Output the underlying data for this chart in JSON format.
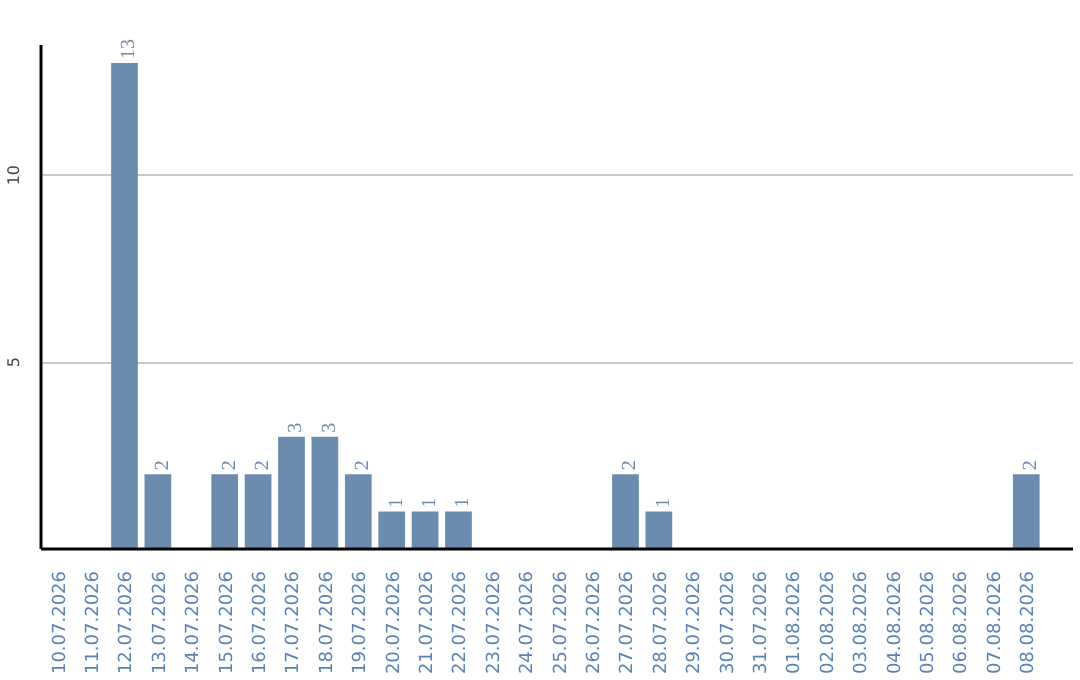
{
  "chart_data": {
    "type": "bar",
    "categories": [
      "10.07.2026",
      "11.07.2026",
      "12.07.2026",
      "13.07.2026",
      "14.07.2026",
      "15.07.2026",
      "16.07.2026",
      "17.07.2026",
      "18.07.2026",
      "19.07.2026",
      "20.07.2026",
      "21.07.2026",
      "22.07.2026",
      "23.07.2026",
      "24.07.2026",
      "25.07.2026",
      "26.07.2026",
      "27.07.2026",
      "28.07.2026",
      "29.07.2026",
      "30.07.2026",
      "31.07.2026",
      "01.08.2026",
      "02.08.2026",
      "03.08.2026",
      "04.08.2026",
      "05.08.2026",
      "06.08.2026",
      "07.08.2026",
      "08.08.2026"
    ],
    "values": [
      null,
      null,
      13,
      2,
      null,
      2,
      2,
      3,
      3,
      2,
      1,
      1,
      1,
      null,
      null,
      null,
      null,
      2,
      1,
      null,
      null,
      null,
      null,
      null,
      null,
      null,
      null,
      null,
      null,
      2
    ],
    "color": "#6b8cae",
    "ylim": [
      0,
      13.5
    ],
    "yticks": [
      5,
      10
    ],
    "grid": "y",
    "data_labels": true
  }
}
